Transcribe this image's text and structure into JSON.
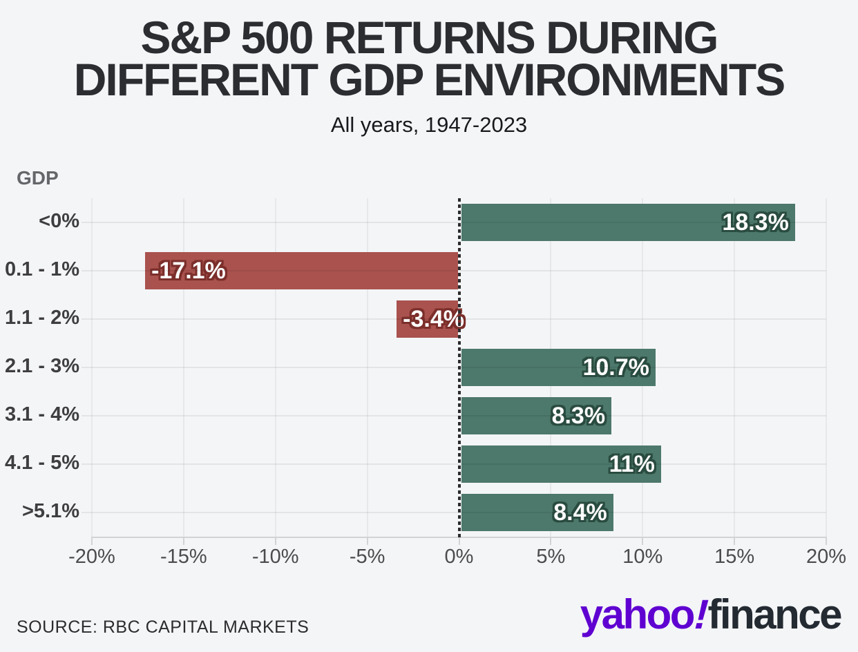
{
  "page": {
    "background": "#f4f5f7"
  },
  "header": {
    "title_line1": "S&P 500 RETURNS DURING",
    "title_line2": "DIFFERENT GDP ENVIRONMENTS",
    "subtitle": "All years, 1947-2023"
  },
  "chart_data": {
    "type": "bar",
    "orientation": "horizontal",
    "title": "S&P 500 RETURNS DURING DIFFERENT GDP ENVIRONMENTS",
    "subtitle": "All years, 1947-2023",
    "axis_title": "GDP",
    "categories": [
      "<0%",
      "0.1 - 1%",
      "1.1 - 2%",
      "2.1 - 3%",
      "3.1 - 4%",
      "4.1 - 5%",
      ">5.1%"
    ],
    "values": [
      18.3,
      -17.1,
      -3.4,
      10.7,
      8.3,
      11,
      8.4
    ],
    "value_labels": [
      "18.3%",
      "-17.1%",
      "-3.4%",
      "10.7%",
      "8.3%",
      "11%",
      "8.4%"
    ],
    "xlim": [
      -20,
      20
    ],
    "xtick_values": [
      -20,
      -15,
      -10,
      -5,
      0,
      5,
      10,
      15,
      20
    ],
    "xtick_labels": [
      "-20%",
      "-15%",
      "-10%",
      "-5%",
      "0%",
      "5%",
      "10%",
      "15%",
      "20%"
    ],
    "grid": true,
    "zero_line_style": "dotted",
    "legend": "none",
    "colors": {
      "positive_bar": "#4d786c",
      "negative_bar": "#a9524e",
      "positive_label_outline": "#2a4c40",
      "negative_label_outline": "#7c2f2b",
      "label_text": "#ffffff"
    }
  },
  "footer": {
    "source": "SOURCE: RBC CAPITAL MARKETS",
    "logo": {
      "yahoo": "yahoo",
      "exclaim": "!",
      "finance": "finance",
      "purple": "#5f01d1",
      "dark": "#232a31"
    }
  }
}
